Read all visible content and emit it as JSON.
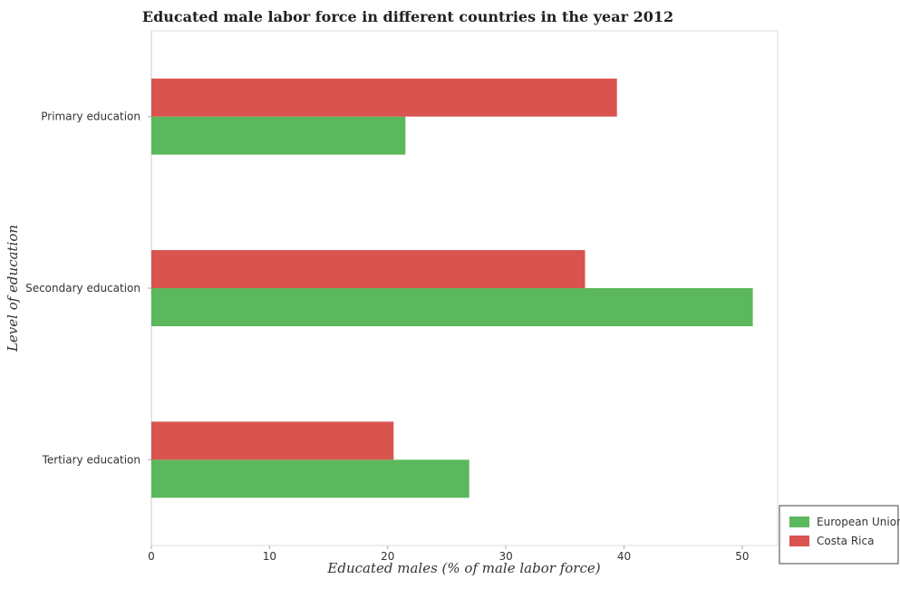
{
  "chart_data": {
    "type": "bar",
    "orientation": "horizontal",
    "title": "Educated male labor force in different countries in the year 2012",
    "xlabel": "Educated males (% of male labor force)",
    "ylabel": "Level of education",
    "categories": [
      "Primary education",
      "Secondary education",
      "Tertiary education"
    ],
    "series": [
      {
        "name": "European Union",
        "color": "#5cb85c",
        "values": [
          21.5,
          50.9,
          26.9
        ]
      },
      {
        "name": "Costa Rica",
        "color": "#d9534f",
        "values": [
          39.4,
          36.7,
          20.5
        ]
      }
    ],
    "xlim": [
      0,
      53
    ],
    "xticks": [
      0,
      10,
      20,
      30,
      40,
      50
    ],
    "grid": false,
    "legend_position": "bottom-right"
  }
}
